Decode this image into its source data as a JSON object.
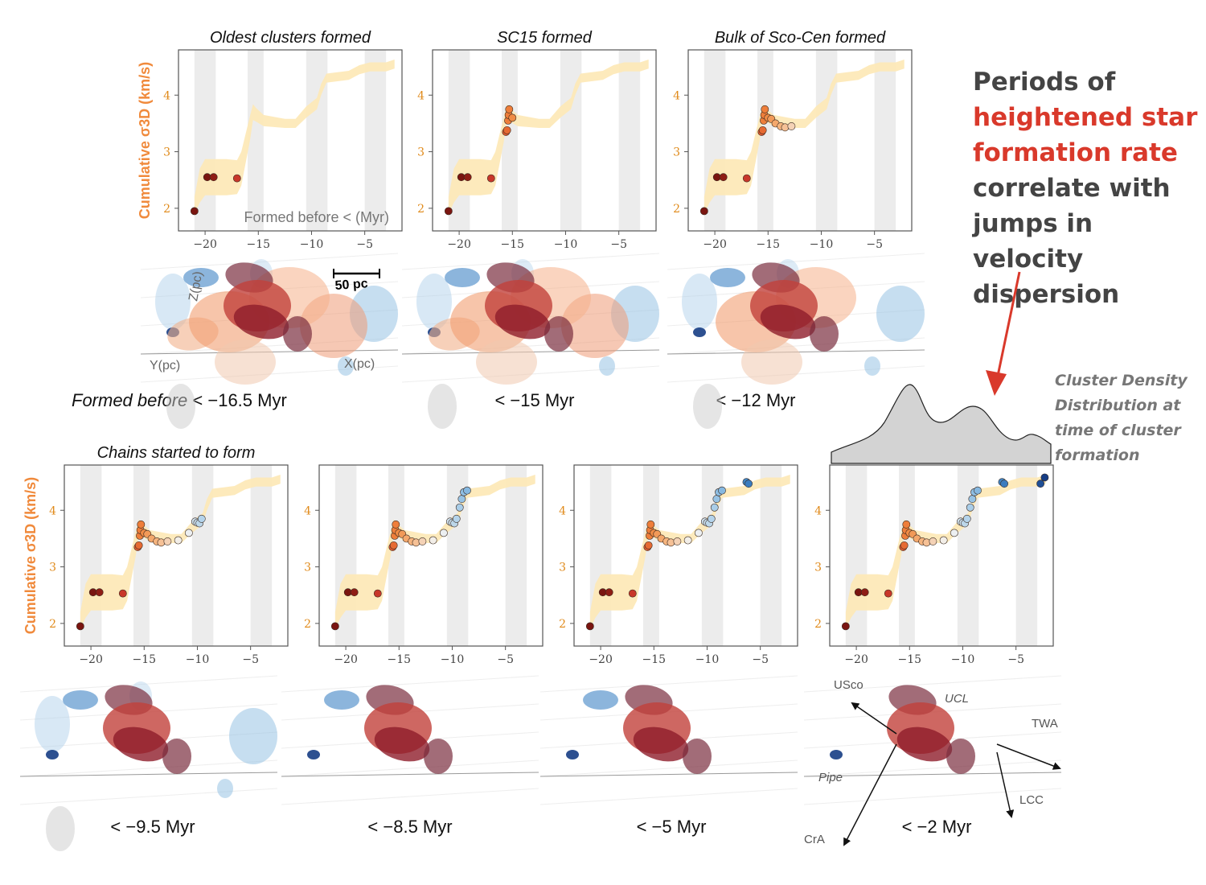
{
  "headline": {
    "part1": "Periods of",
    "highlight": "heightened star formation rate",
    "part2": "correlate with jumps in velocity dispersion"
  },
  "density_note": "Cluster Density Distribution at time of cluster formation",
  "scale_bar_label": "50 pc",
  "axis_3d_labels": {
    "z": "Z(pc)",
    "y": "Y(pc)",
    "x": "X(pc)"
  },
  "region_labels": {
    "usco": "USco",
    "ucl": "UCL",
    "twa": "TWA",
    "pipe": "Pipe",
    "lcc": "LCC",
    "cra": "CrA"
  },
  "colors": {
    "band": "#fde9b8",
    "bin_shade": "#ececec",
    "ylabel": "#f08a3c",
    "arrow_red": "#d9392b",
    "density_fill": "#d3d3d3"
  },
  "chart_data": [
    {
      "type": "scatter",
      "panel": 1,
      "title": "Oldest clusters formed",
      "inset_label": "Formed before < (Myr)",
      "ylabel": "Cumulative σ3D (km/s)",
      "xlim": [
        -22.5,
        -1.5
      ],
      "ylim": [
        1.6,
        4.8
      ],
      "xticks": [
        -20,
        -15,
        -10,
        -5
      ],
      "yticks": [
        2,
        3,
        4
      ],
      "cutoff": -16.5,
      "caption": "Formed before < −16.5 Myr"
    },
    {
      "type": "scatter",
      "panel": 2,
      "title": "SC15 formed",
      "ylabel": "",
      "xlim": [
        -22.5,
        -1.5
      ],
      "ylim": [
        1.6,
        4.8
      ],
      "xticks": [
        -20,
        -15,
        -10,
        -5
      ],
      "yticks": [
        2,
        3,
        4
      ],
      "cutoff": -15,
      "caption": "< −15 Myr"
    },
    {
      "type": "scatter",
      "panel": 3,
      "title": "Bulk of Sco-Cen formed",
      "ylabel": "",
      "xlim": [
        -22.5,
        -1.5
      ],
      "ylim": [
        1.6,
        4.8
      ],
      "xticks": [
        -20,
        -15,
        -10,
        -5
      ],
      "yticks": [
        2,
        3,
        4
      ],
      "cutoff": -12,
      "caption": "< −12 Myr"
    },
    {
      "type": "scatter",
      "panel": 4,
      "title": "Chains started to form",
      "ylabel": "Cumulative σ3D (km/s)",
      "xlim": [
        -22.5,
        -1.5
      ],
      "ylim": [
        1.6,
        4.8
      ],
      "xticks": [
        -20,
        -15,
        -10,
        -5
      ],
      "yticks": [
        2,
        3,
        4
      ],
      "cutoff": -9.5,
      "caption": "< −9.5 Myr"
    },
    {
      "type": "scatter",
      "panel": 5,
      "title": "",
      "ylabel": "",
      "xlim": [
        -22.5,
        -1.5
      ],
      "ylim": [
        1.6,
        4.8
      ],
      "xticks": [
        -20,
        -15,
        -10,
        -5
      ],
      "yticks": [
        2,
        3,
        4
      ],
      "cutoff": -8.5,
      "caption": "< −8.5 Myr"
    },
    {
      "type": "scatter",
      "panel": 6,
      "title": "",
      "ylabel": "",
      "xlim": [
        -22.5,
        -1.5
      ],
      "ylim": [
        1.6,
        4.8
      ],
      "xticks": [
        -20,
        -15,
        -10,
        -5
      ],
      "yticks": [
        2,
        3,
        4
      ],
      "cutoff": -5,
      "caption": "< −5 Myr"
    },
    {
      "type": "scatter",
      "panel": 7,
      "title": "",
      "ylabel": "",
      "xlim": [
        -22.5,
        -1.5
      ],
      "ylim": [
        1.6,
        4.8
      ],
      "xticks": [
        -20,
        -15,
        -10,
        -5
      ],
      "yticks": [
        2,
        3,
        4
      ],
      "cutoff": -2,
      "caption": "< −2 Myr"
    }
  ],
  "series": {
    "band_center": [
      [
        -21,
        2.05
      ],
      [
        -20.5,
        2.4
      ],
      [
        -20,
        2.55
      ],
      [
        -19.5,
        2.55
      ],
      [
        -18,
        2.55
      ],
      [
        -17,
        2.55
      ],
      [
        -16.6,
        2.7
      ],
      [
        -15.8,
        3.4
      ],
      [
        -15.5,
        3.7
      ],
      [
        -15.2,
        3.65
      ],
      [
        -14.5,
        3.55
      ],
      [
        -12.5,
        3.5
      ],
      [
        -11.5,
        3.5
      ],
      [
        -10.5,
        3.7
      ],
      [
        -9.5,
        3.85
      ],
      [
        -9.1,
        4.1
      ],
      [
        -8.6,
        4.3
      ],
      [
        -6.5,
        4.35
      ],
      [
        -5.5,
        4.45
      ],
      [
        -4.5,
        4.5
      ],
      [
        -3,
        4.5
      ],
      [
        -2.2,
        4.55
      ]
    ],
    "band_halfwidth": [
      0.15,
      0.3,
      0.32,
      0.32,
      0.32,
      0.3,
      0.3,
      0.22,
      0.14,
      0.12,
      0.1,
      0.08,
      0.08,
      0.1,
      0.1,
      0.1,
      0.08,
      0.08,
      0.08,
      0.08,
      0.08,
      0.08
    ],
    "shaded_bins": [
      [
        -21,
        -19
      ],
      [
        -16,
        -14.5
      ],
      [
        -10.5,
        -8.5
      ],
      [
        -5,
        -3
      ]
    ],
    "points": [
      {
        "x": -21,
        "y": 1.95,
        "c": "#7a1510"
      },
      {
        "x": -19.8,
        "y": 2.55,
        "c": "#7a1510"
      },
      {
        "x": -19.2,
        "y": 2.55,
        "c": "#8e1d15"
      },
      {
        "x": -17,
        "y": 2.53,
        "c": "#c8372a"
      },
      {
        "x": -15.6,
        "y": 3.35,
        "c": "#e25a2e"
      },
      {
        "x": -15.5,
        "y": 3.38,
        "c": "#e66a32"
      },
      {
        "x": -15.4,
        "y": 3.55,
        "c": "#ee7e3a"
      },
      {
        "x": -15.35,
        "y": 3.65,
        "c": "#ee7e3a"
      },
      {
        "x": -15.3,
        "y": 3.75,
        "c": "#ee7e3a"
      },
      {
        "x": -15.0,
        "y": 3.6,
        "c": "#f08c45"
      },
      {
        "x": -14.7,
        "y": 3.58,
        "c": "#f29a58"
      },
      {
        "x": -14.3,
        "y": 3.5,
        "c": "#f4a86c"
      },
      {
        "x": -13.8,
        "y": 3.45,
        "c": "#f5b47e"
      },
      {
        "x": -13.4,
        "y": 3.43,
        "c": "#f6c196"
      },
      {
        "x": -12.8,
        "y": 3.45,
        "c": "#f4d2b6"
      },
      {
        "x": -11.8,
        "y": 3.47,
        "c": "#f2eee8"
      },
      {
        "x": -10.8,
        "y": 3.6,
        "c": "#eceff1"
      },
      {
        "x": -10.2,
        "y": 3.8,
        "c": "#cfe1ee"
      },
      {
        "x": -10.0,
        "y": 3.78,
        "c": "#c7dcec"
      },
      {
        "x": -9.8,
        "y": 3.77,
        "c": "#bcd7ea"
      },
      {
        "x": -9.6,
        "y": 3.85,
        "c": "#b4d3ea"
      },
      {
        "x": -9.3,
        "y": 4.05,
        "c": "#a9cde8"
      },
      {
        "x": -9.1,
        "y": 4.2,
        "c": "#98c3e4"
      },
      {
        "x": -8.9,
        "y": 4.32,
        "c": "#8dbde2"
      },
      {
        "x": -8.6,
        "y": 4.35,
        "c": "#86b8e0"
      },
      {
        "x": -6.3,
        "y": 4.5,
        "c": "#3f84c4"
      },
      {
        "x": -6.1,
        "y": 4.47,
        "c": "#3a7cbf"
      },
      {
        "x": -2.7,
        "y": 4.47,
        "c": "#1f4f96"
      },
      {
        "x": -2.3,
        "y": 4.58,
        "c": "#163d84"
      }
    ]
  }
}
